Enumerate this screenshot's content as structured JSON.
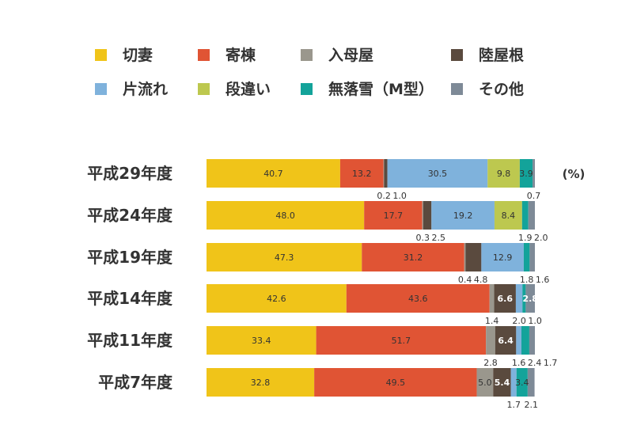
{
  "chart_data": {
    "type": "bar",
    "orientation": "horizontal",
    "stacked": true,
    "unit_label": "(%)",
    "categories": [
      "平成29年度",
      "平成24年度",
      "平成19年度",
      "平成14年度",
      "平成11年度",
      "平成7年度"
    ],
    "series": [
      {
        "name": "切妻",
        "color": "#f0c419",
        "values": [
          40.7,
          48.0,
          47.3,
          42.6,
          33.4,
          32.8
        ]
      },
      {
        "name": "寄棟",
        "color": "#e05434",
        "values": [
          13.2,
          17.7,
          31.2,
          43.6,
          51.7,
          49.5
        ]
      },
      {
        "name": "入母屋",
        "color": "#9a978d",
        "values": [
          0.2,
          0.3,
          0.4,
          1.4,
          2.8,
          5.0
        ]
      },
      {
        "name": "陸屋根",
        "color": "#5a4a3e",
        "values": [
          1.0,
          2.5,
          4.8,
          6.6,
          6.4,
          5.4
        ]
      },
      {
        "name": "片流れ",
        "color": "#7fb2dc",
        "values": [
          30.5,
          19.2,
          12.9,
          2.0,
          1.6,
          1.7
        ]
      },
      {
        "name": "段違い",
        "color": "#bdc84f",
        "values": [
          9.8,
          8.4,
          0,
          0,
          0,
          0
        ]
      },
      {
        "name": "無落雪(M型)",
        "color": "#13a39a",
        "values": [
          3.9,
          1.9,
          1.8,
          1.0,
          2.4,
          3.4
        ]
      },
      {
        "name": "その他",
        "color": "#7e8a97",
        "values": [
          0.7,
          2.0,
          1.6,
          2.8,
          1.7,
          2.1
        ]
      }
    ],
    "legend_labels": [
      "切妻",
      "寄棟",
      "入母屋",
      "陸屋根",
      "片流れ",
      "段違い",
      "無落雪（M型）",
      "その他"
    ],
    "inside_labels": [
      [
        "40.7",
        "13.2",
        "",
        "",
        "30.5",
        "9.8",
        "3.9",
        ""
      ],
      [
        "48.0",
        "17.7",
        "",
        "",
        "19.2",
        "8.4",
        "",
        ""
      ],
      [
        "47.3",
        "31.2",
        "",
        "",
        "12.9",
        "",
        "",
        ""
      ],
      [
        "42.6",
        "43.6",
        "",
        "6.6",
        "",
        "",
        "",
        "2.8"
      ],
      [
        "33.4",
        "51.7",
        "",
        "6.4",
        "",
        "",
        "",
        ""
      ],
      [
        "32.8",
        "49.5",
        "5.0",
        "5.4",
        "",
        "",
        "3.4",
        ""
      ]
    ],
    "below_labels": [
      {
        "row": 0,
        "series": 2,
        "text": "0.2"
      },
      {
        "row": 0,
        "series": 3,
        "text": "1.0"
      },
      {
        "row": 0,
        "series": 7,
        "text": "0.7"
      },
      {
        "row": 1,
        "series": 2,
        "text": "0.3"
      },
      {
        "row": 1,
        "series": 3,
        "text": "2.5"
      },
      {
        "row": 1,
        "series": 6,
        "text": "1.9"
      },
      {
        "row": 1,
        "series": 7,
        "text": "2.0"
      },
      {
        "row": 2,
        "series": 2,
        "text": "0.4"
      },
      {
        "row": 2,
        "series": 3,
        "text": "4.8"
      },
      {
        "row": 2,
        "series": 6,
        "text": "1.8"
      },
      {
        "row": 2,
        "series": 7,
        "text": "1.6"
      },
      {
        "row": 3,
        "series": 2,
        "text": "1.4"
      },
      {
        "row": 3,
        "series": 4,
        "text": "2.0"
      },
      {
        "row": 3,
        "series": 6,
        "text": "1.0"
      },
      {
        "row": 4,
        "series": 2,
        "text": "2.8"
      },
      {
        "row": 4,
        "series": 4,
        "text": "1.6"
      },
      {
        "row": 4,
        "series": 6,
        "text": "2.4"
      },
      {
        "row": 4,
        "series": 7,
        "text": "1.7"
      },
      {
        "row": 5,
        "series": 4,
        "text": "1.7"
      },
      {
        "row": 5,
        "series": 7,
        "text": "2.1"
      }
    ],
    "xlim": [
      0,
      100
    ],
    "legend_position": "top"
  }
}
